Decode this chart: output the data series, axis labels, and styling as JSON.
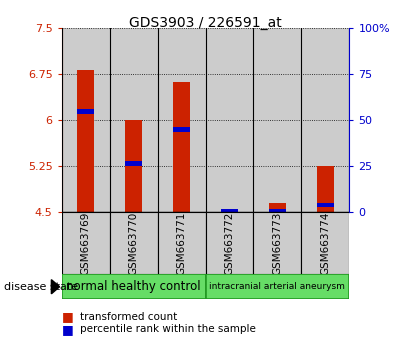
{
  "title": "GDS3903 / 226591_at",
  "samples": [
    "GSM663769",
    "GSM663770",
    "GSM663771",
    "GSM663772",
    "GSM663773",
    "GSM663774"
  ],
  "red_values": [
    6.82,
    6.0,
    6.62,
    4.55,
    4.65,
    5.25
  ],
  "blue_values": [
    6.15,
    5.3,
    5.85,
    4.52,
    4.52,
    4.62
  ],
  "y_min": 4.5,
  "y_max": 7.5,
  "y_ticks": [
    4.5,
    5.25,
    6.0,
    6.75,
    7.5
  ],
  "y_tick_labels": [
    "4.5",
    "5.25",
    "6",
    "6.75",
    "7.5"
  ],
  "right_y_ticks": [
    0,
    25,
    50,
    75,
    100
  ],
  "right_y_tick_labels": [
    "0",
    "25",
    "50",
    "75",
    "100%"
  ],
  "group_labels": [
    "normal healthy control",
    "intracranial arterial aneurysm"
  ],
  "group_ranges": [
    [
      0,
      3
    ],
    [
      3,
      6
    ]
  ],
  "disease_state_label": "disease state",
  "legend_red": "transformed count",
  "legend_blue": "percentile rank within the sample",
  "red_color": "#cc2200",
  "blue_color": "#0000cc",
  "bar_width": 0.35,
  "bar_bg_color": "#cccccc",
  "green_color": "#66dd66",
  "title_fontsize": 10,
  "tick_fontsize": 8,
  "label_fontsize": 7.5,
  "axis_left_color": "#cc2200",
  "axis_right_color": "#0000cc"
}
